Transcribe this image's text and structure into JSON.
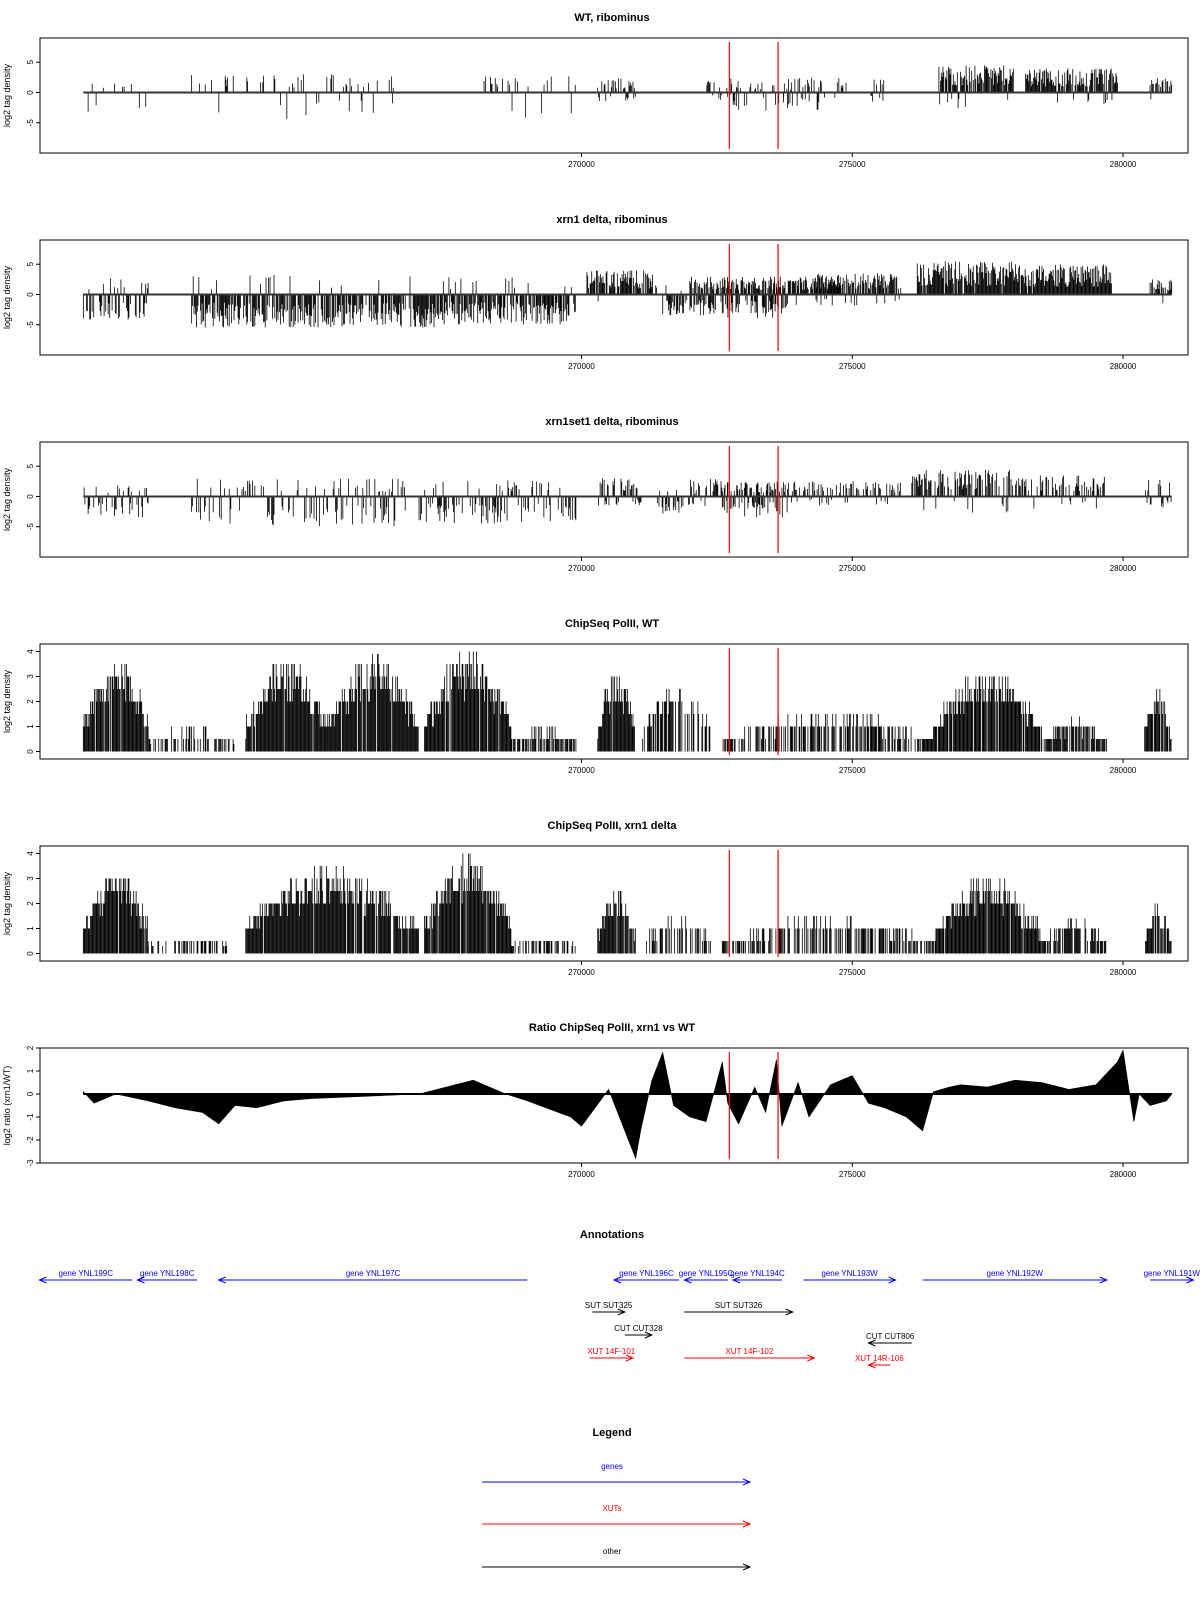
{
  "chart_data": [
    {
      "type": "bar",
      "title": "WT, ribominus",
      "ylabel": "log2 tag density",
      "yticks": [
        "-5",
        "0",
        "5"
      ],
      "ylim": [
        -10,
        9
      ],
      "xlim": [
        260000,
        281200
      ],
      "xticks": [
        "270000",
        "275000",
        "280000"
      ],
      "series": [
        {
          "segments": [
            [
              260800,
              262000,
              -1,
              3.5,
              0.2,
              0.6
            ],
            [
              262800,
              266800,
              -1,
              5,
              0.2,
              0.8
            ],
            [
              268200,
              269900,
              -1,
              4.5,
              0.2,
              0.8
            ],
            [
              270300,
              271000,
              1,
              2.5,
              0.6,
              0.3
            ],
            [
              272300,
              272900,
              1,
              2.5,
              0.3,
              0.4
            ],
            [
              272800,
              274400,
              -1,
              3,
              0.4,
              0.3
            ],
            [
              273600,
              274900,
              1,
              2.5,
              0.3,
              0.2
            ],
            [
              275300,
              275600,
              1,
              3,
              0.6,
              0.2
            ],
            [
              276600,
              278000,
              1,
              4.5,
              0.9,
              0.05
            ],
            [
              278200,
              279900,
              1,
              4,
              0.9,
              0.05
            ],
            [
              280500,
              280900,
              1,
              3,
              0.7,
              0.1
            ]
          ]
        }
      ],
      "markers": [
        272730,
        273630
      ],
      "marker_color": "#ff0000"
    },
    {
      "type": "bar",
      "title": "xrn1 delta, ribominus",
      "ylabel": "log2 tag density",
      "yticks": [
        "-5",
        "0",
        "5"
      ],
      "ylim": [
        -10,
        9
      ],
      "xlim": [
        260000,
        281200
      ],
      "xticks": [
        "270000",
        "275000",
        "280000"
      ],
      "series": [
        {
          "segments": [
            [
              260800,
              262000,
              -1,
              4.5,
              0.5,
              0.3
            ],
            [
              262800,
              267300,
              -1,
              5.5,
              0.85,
              0.1
            ],
            [
              267300,
              269900,
              -1,
              5,
              0.85,
              0.1
            ],
            [
              270100,
              271400,
              1,
              4,
              0.85,
              0.05
            ],
            [
              271500,
              272500,
              -1,
              3.5,
              0.7,
              0.1
            ],
            [
              272000,
              274800,
              1,
              3,
              0.8,
              0.1
            ],
            [
              272600,
              273800,
              -1,
              4,
              0.7,
              0.2
            ],
            [
              274300,
              275900,
              1,
              3.5,
              0.85,
              0.1
            ],
            [
              276200,
              278000,
              1,
              5.5,
              0.95,
              0.0
            ],
            [
              278000,
              279800,
              1,
              5,
              0.95,
              0.0
            ],
            [
              280500,
              280900,
              1,
              2.5,
              0.8,
              0.1
            ]
          ]
        }
      ],
      "markers": [
        272730,
        273630
      ],
      "marker_color": "#ff0000"
    },
    {
      "type": "bar",
      "title": "xrn1set1 delta, ribominus",
      "ylabel": "log2 tag density",
      "yticks": [
        "-5",
        "0",
        "5"
      ],
      "ylim": [
        -10,
        9
      ],
      "xlim": [
        260000,
        281200
      ],
      "xticks": [
        "270000",
        "275000",
        "280000"
      ],
      "series": [
        {
          "segments": [
            [
              260800,
              262000,
              -1,
              3.5,
              0.35,
              0.3
            ],
            [
              262800,
              266800,
              -1,
              5,
              0.4,
              0.4
            ],
            [
              267000,
              269900,
              -1,
              4.5,
              0.5,
              0.3
            ],
            [
              270300,
              271100,
              1,
              3,
              0.5,
              0.3
            ],
            [
              271400,
              272100,
              -1,
              3,
              0.5,
              0.2
            ],
            [
              272000,
              272700,
              1,
              3,
              0.5,
              0.2
            ],
            [
              272600,
              273800,
              -1,
              4,
              0.5,
              0.3
            ],
            [
              272800,
              275900,
              1,
              2.5,
              0.5,
              0.2
            ],
            [
              276100,
              278000,
              1,
              4.5,
              0.7,
              0.1
            ],
            [
              278000,
              279700,
              1,
              3.5,
              0.55,
              0.15
            ],
            [
              280400,
              280900,
              1,
              3,
              0.5,
              0.3
            ]
          ]
        }
      ],
      "markers": [
        272730,
        273630
      ],
      "marker_color": "#ff0000"
    },
    {
      "type": "bar",
      "title": "ChipSeq PolII, WT",
      "ylabel": "log2 tag density",
      "yticks": [
        "0",
        "1",
        "2",
        "3",
        "4"
      ],
      "ylim": [
        -0.3,
        4.3
      ],
      "xlim": [
        260000,
        281200
      ],
      "xticks": [
        "270000",
        "275000",
        "280000"
      ],
      "series": [
        {
          "segments": [
            [
              260800,
              262000,
              1,
              3.8,
              0.95,
              0.0
            ],
            [
              262000,
              263600,
              1,
              1,
              0.5,
              0.0
            ],
            [
              263800,
              265300,
              1,
              3.7,
              0.95,
              0.0
            ],
            [
              265300,
              267000,
              1,
              3.9,
              0.95,
              0.0
            ],
            [
              267100,
              268700,
              1,
              4.0,
              0.95,
              0.0
            ],
            [
              268700,
              269900,
              1,
              1,
              0.7,
              0.0
            ],
            [
              270300,
              271000,
              1,
              3.2,
              0.9,
              0.0
            ],
            [
              271100,
              272400,
              1,
              2.8,
              0.6,
              0.0
            ],
            [
              272600,
              276500,
              1,
              1.6,
              0.6,
              0.0
            ],
            [
              276500,
              278500,
              1,
              3.3,
              0.95,
              0.0
            ],
            [
              278500,
              279700,
              1,
              1.4,
              0.8,
              0.0
            ],
            [
              280400,
              280900,
              1,
              2.6,
              0.95,
              0.0
            ]
          ]
        }
      ],
      "markers": [
        272730,
        273630
      ],
      "marker_color": "#ff0000"
    },
    {
      "type": "bar",
      "title": "ChipSeq PolII, xrn1 delta",
      "ylabel": "log2 tag density",
      "yticks": [
        "0",
        "1",
        "2",
        "3",
        "4"
      ],
      "ylim": [
        -0.3,
        4.3
      ],
      "xlim": [
        260000,
        281200
      ],
      "xticks": [
        "270000",
        "275000",
        "280000"
      ],
      "series": [
        {
          "segments": [
            [
              260800,
              262000,
              1,
              3.4,
              0.95,
              0.0
            ],
            [
              262000,
              263500,
              1,
              0.6,
              0.4,
              0.0
            ],
            [
              263800,
              267000,
              1,
              3.5,
              0.95,
              0.0
            ],
            [
              267100,
              268700,
              1,
              4.0,
              0.95,
              0.0
            ],
            [
              268700,
              269900,
              1,
              0.7,
              0.5,
              0.0
            ],
            [
              270300,
              271000,
              1,
              2.7,
              0.9,
              0.0
            ],
            [
              271200,
              272400,
              1,
              1.7,
              0.5,
              0.0
            ],
            [
              272600,
              276500,
              1,
              1.5,
              0.55,
              0.0
            ],
            [
              276500,
              278500,
              1,
              3.0,
              0.95,
              0.0
            ],
            [
              278500,
              279700,
              1,
              1.4,
              0.7,
              0.0
            ],
            [
              280400,
              280900,
              1,
              2.0,
              0.9,
              0.0
            ]
          ]
        }
      ],
      "markers": [
        272730,
        273630
      ],
      "marker_color": "#ff0000"
    },
    {
      "type": "area",
      "title": "Ratio ChipSeq PolII, xrn1 vs WT",
      "ylabel": "log2 ratio (xrn1/WT)",
      "yticks": [
        "-3",
        "-2",
        "-1",
        "0",
        "1",
        "2"
      ],
      "ylim": [
        -3,
        2
      ],
      "xlim": [
        260000,
        281200
      ],
      "xticks": [
        "270000",
        "275000",
        "280000"
      ],
      "x": [
        260800,
        261000,
        261400,
        262000,
        262500,
        263000,
        263300,
        263600,
        264000,
        264500,
        265000,
        266000,
        267000,
        268000,
        268600,
        269000,
        269800,
        270000,
        270500,
        271000,
        271100,
        271300,
        271500,
        271700,
        272000,
        272300,
        272600,
        272700,
        272900,
        273200,
        273400,
        273600,
        273700,
        274000,
        274200,
        274400,
        274600,
        275000,
        275300,
        275600,
        276000,
        276300,
        276500,
        276800,
        277000,
        277500,
        278000,
        278500,
        279000,
        279500,
        279900,
        280000,
        280200,
        280300,
        280500,
        280800,
        280900
      ],
      "values": [
        0.1,
        -0.4,
        0.0,
        -0.3,
        -0.6,
        -0.8,
        -1.3,
        -0.5,
        -0.6,
        -0.3,
        -0.2,
        -0.1,
        0.0,
        0.6,
        0.0,
        -0.3,
        -1.0,
        -1.4,
        0.2,
        -2.8,
        -1.5,
        0.6,
        1.8,
        -0.5,
        -1.0,
        -1.2,
        1.4,
        -0.4,
        -1.3,
        0.3,
        -0.8,
        1.5,
        -1.4,
        0.5,
        -1.0,
        -0.3,
        0.4,
        0.8,
        -0.4,
        -0.6,
        -1.0,
        -1.6,
        0.1,
        0.3,
        0.4,
        0.3,
        0.6,
        0.5,
        0.2,
        0.4,
        1.4,
        1.9,
        -1.2,
        0.0,
        -0.5,
        -0.3,
        0.0
      ],
      "markers": [
        272730,
        273630
      ],
      "marker_color": "#ff0000"
    }
  ],
  "annotations": {
    "title": "Annotations",
    "features": [
      {
        "label": "gene YNL199C",
        "start": 259990,
        "end": 261700,
        "dir": "left",
        "row": 0,
        "color": "#0000ff"
      },
      {
        "label": "gene YNL198C",
        "start": 261800,
        "end": 262900,
        "dir": "left",
        "row": 0,
        "color": "#0000ff"
      },
      {
        "label": "gene YNL197C",
        "start": 263300,
        "end": 269000,
        "dir": "left",
        "row": 0,
        "color": "#0000ff"
      },
      {
        "label": "gene YNL196C",
        "start": 270600,
        "end": 271800,
        "dir": "left",
        "row": 0,
        "color": "#0000ff"
      },
      {
        "label": "gene YNL195C",
        "start": 271900,
        "end": 272700,
        "dir": "left",
        "row": 0,
        "color": "#0000ff"
      },
      {
        "label": "gene YNL194C",
        "start": 272800,
        "end": 273700,
        "dir": "left",
        "row": 0,
        "color": "#0000ff"
      },
      {
        "label": "gene YNL193W",
        "start": 274100,
        "end": 275800,
        "dir": "right",
        "row": -1,
        "color": "#0000ff"
      },
      {
        "label": "gene YNL192W",
        "start": 276300,
        "end": 279700,
        "dir": "right",
        "row": -1,
        "color": "#0000ff"
      },
      {
        "label": "gene YNL191W",
        "start": 280500,
        "end": 281300,
        "dir": "right",
        "row": -1,
        "color": "#0000ff"
      },
      {
        "label": "SUT SUT325",
        "start": 270200,
        "end": 270800,
        "dir": "right",
        "row": 1,
        "color": "#000000"
      },
      {
        "label": "SUT SUT326",
        "start": 271900,
        "end": 273900,
        "dir": "right",
        "row": 1,
        "color": "#000000"
      },
      {
        "label": "CUT CUT328",
        "start": 270800,
        "end": 271300,
        "dir": "right",
        "row": 2,
        "color": "#000000"
      },
      {
        "label": "CUT CUT806",
        "start": 275300,
        "end": 276100,
        "dir": "left",
        "row": 3,
        "color": "#000000"
      },
      {
        "label": "XUT 14F-101",
        "start": 270150,
        "end": 270950,
        "dir": "right",
        "row": 4,
        "color": "#ff0000"
      },
      {
        "label": "XUT 14F-102",
        "start": 271900,
        "end": 274300,
        "dir": "right",
        "row": 4,
        "color": "#ff0000"
      },
      {
        "label": "XUT 14R-106",
        "start": 275300,
        "end": 275700,
        "dir": "left",
        "row": 5,
        "color": "#ff0000"
      }
    ]
  },
  "legend": {
    "title": "Legend",
    "items": [
      {
        "label": "genes",
        "color": "#0000ff"
      },
      {
        "label": "XUTs",
        "color": "#ff0000"
      },
      {
        "label": "other",
        "color": "#000000"
      }
    ]
  }
}
